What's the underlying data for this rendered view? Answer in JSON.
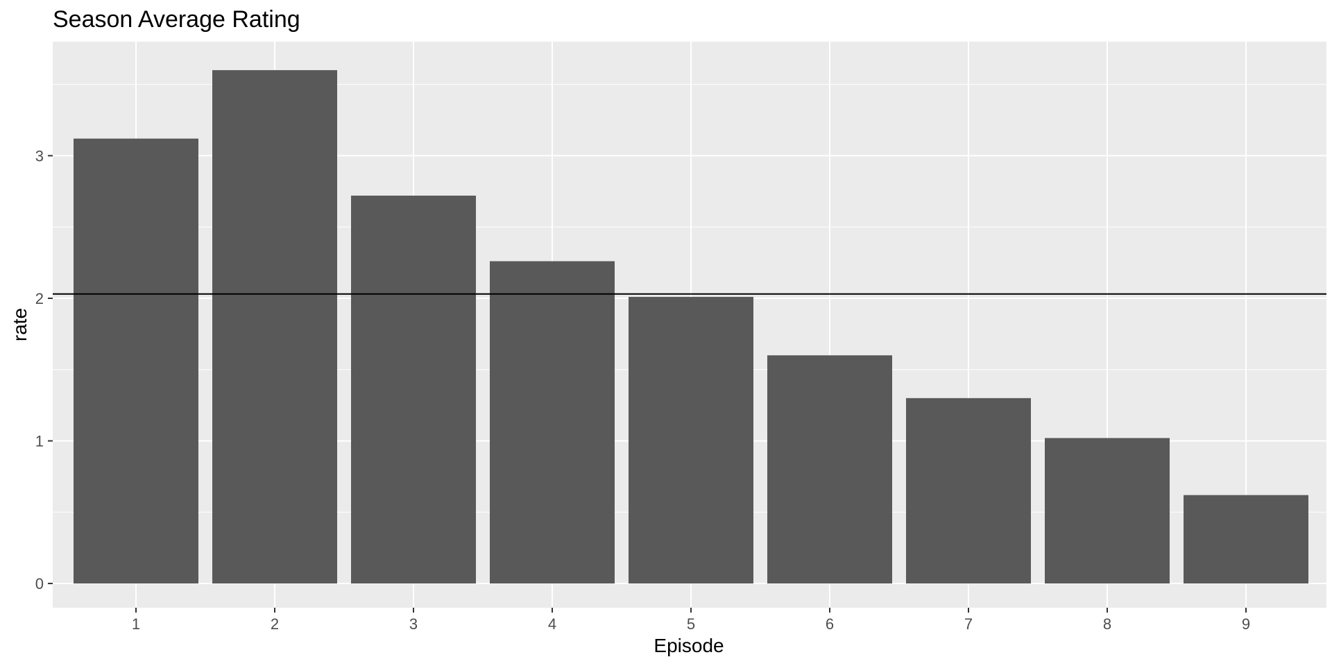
{
  "chart_data": {
    "type": "bar",
    "title": "Season Average Rating",
    "xlabel": "Episode",
    "ylabel": "rate",
    "categories": [
      "1",
      "2",
      "3",
      "4",
      "5",
      "6",
      "7",
      "8",
      "9"
    ],
    "values": [
      3.12,
      3.6,
      2.72,
      2.26,
      2.01,
      1.6,
      1.3,
      1.02,
      0.62
    ],
    "reference_line": 2.03,
    "ylim": [
      -0.17,
      3.8
    ],
    "yticks": [
      "0",
      "1",
      "2",
      "3"
    ],
    "grid": true,
    "legend": "none",
    "colors": {
      "bar": "#595959",
      "panel": "#ebebeb",
      "grid": "#ffffff",
      "reference_line": "#000000",
      "tick": "#333333"
    }
  }
}
